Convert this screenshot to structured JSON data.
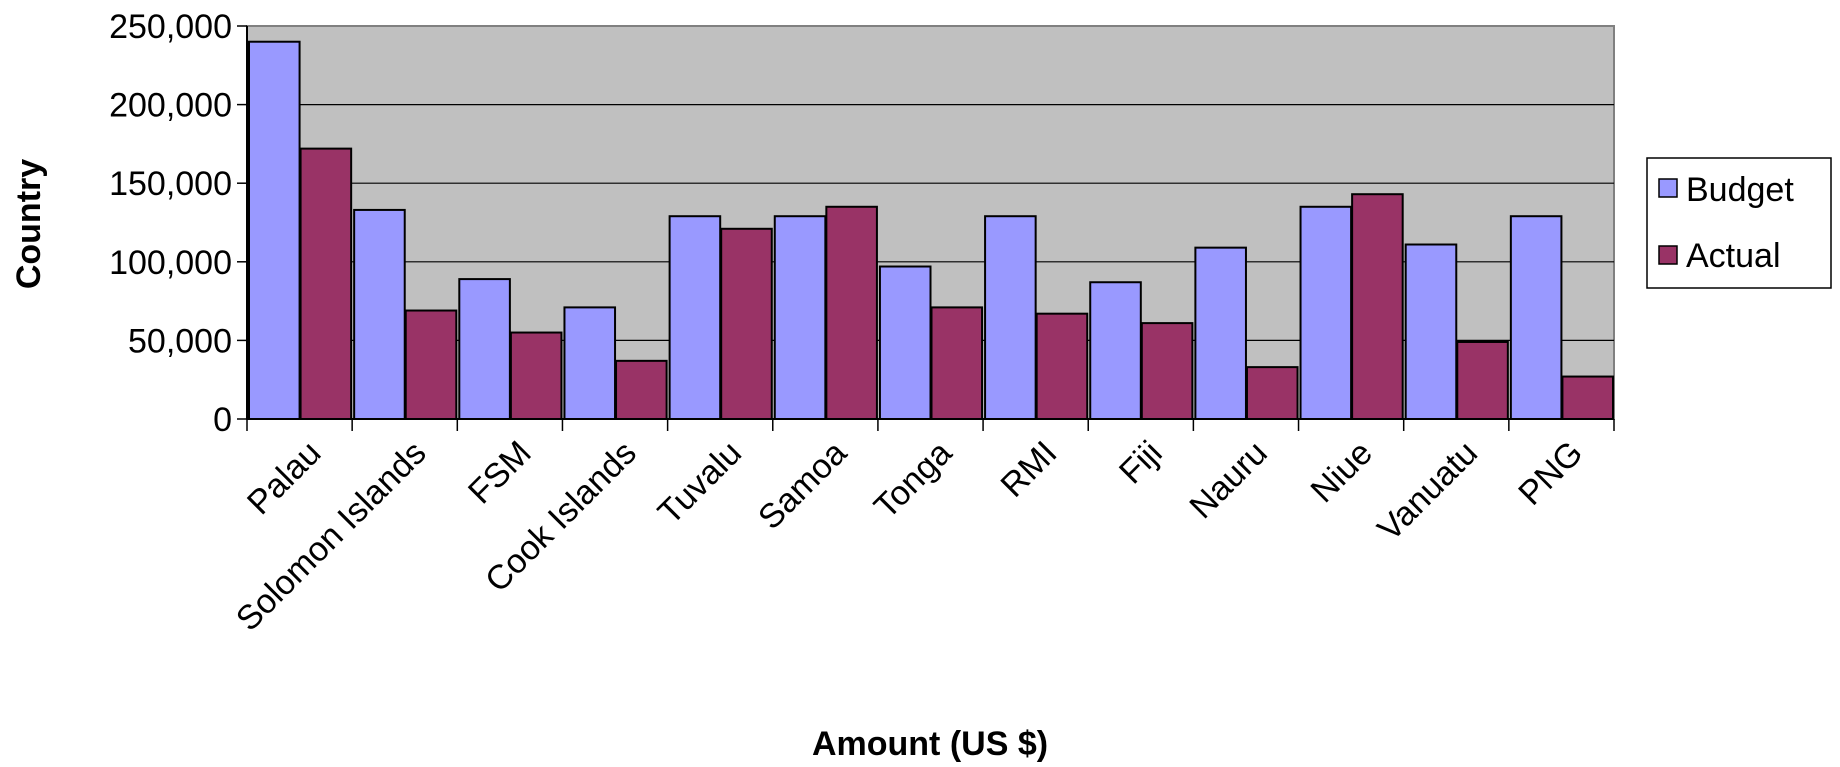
{
  "chart_data": {
    "type": "bar",
    "title": "",
    "xlabel": "Amount (US $)",
    "ylabel": "Country",
    "ylim": [
      0,
      250000
    ],
    "yticks": [
      0,
      50000,
      100000,
      150000,
      200000,
      250000
    ],
    "ytick_labels": [
      "0",
      "50,000",
      "100,000",
      "150,000",
      "200,000",
      "250,000"
    ],
    "categories": [
      "Palau",
      "Solomon Islands",
      "FSM",
      "Cook Islands",
      "Tuvalu",
      "Samoa",
      "Tonga",
      "RMI",
      "Fiji",
      "Nauru",
      "Niue",
      "Vanuatu",
      "PNG"
    ],
    "series": [
      {
        "name": "Budget",
        "color": "#9999ff",
        "values": [
          240000,
          133000,
          89000,
          71000,
          129000,
          129000,
          97000,
          129000,
          87000,
          109000,
          135000,
          111000,
          129000
        ]
      },
      {
        "name": "Actual",
        "color": "#993366",
        "values": [
          172000,
          69000,
          55000,
          37000,
          121000,
          135000,
          71000,
          67000,
          61000,
          33000,
          143000,
          49000,
          27000
        ]
      }
    ],
    "plot_background": "#c0c0c0",
    "grid": true,
    "legend_position": "right"
  }
}
